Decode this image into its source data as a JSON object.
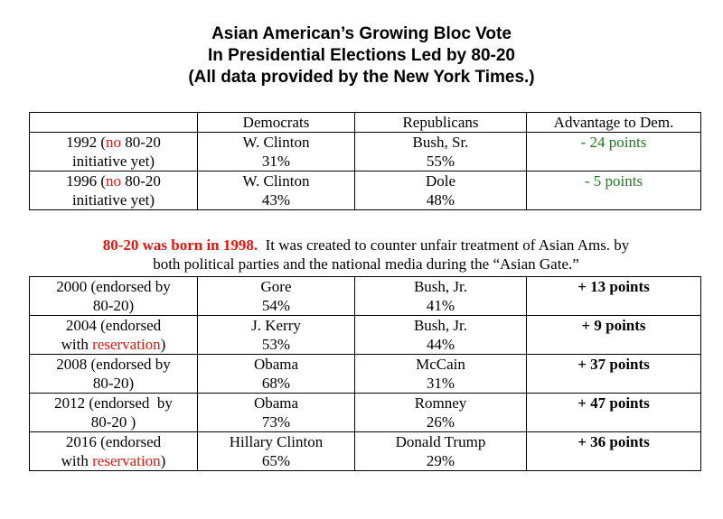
{
  "title": {
    "line1": "Asian American’s Growing Bloc Vote",
    "line2": "In Presidential Elections Led by 80-20",
    "line3": "(All data provided by the New York Times.)"
  },
  "table1": {
    "headers": [
      "",
      "Democrats",
      "Republicans",
      "Advantage to Dem."
    ],
    "rows": [
      {
        "year_prefix": "1992 (",
        "no": "no",
        "year_suffix": " 80-20",
        "year_line2": "initiative yet)",
        "dem_name": "W. Clinton",
        "dem_pct": "31%",
        "rep_name": "Bush, Sr.",
        "rep_pct": "55%",
        "advantage": "- 24 points"
      },
      {
        "year_prefix": "1996 (",
        "no": "no",
        "year_suffix": " 80-20",
        "year_line2": "initiative yet)",
        "dem_name": "W. Clinton",
        "dem_pct": "43%",
        "rep_name": "Dole",
        "rep_pct": "48%",
        "advantage": "- 5 points"
      }
    ]
  },
  "note": {
    "born": "80-20 was born in 1998.",
    "line1_rest": "  It was created to counter unfair treatment of Asian Ams. by",
    "line2": "both political parties and the national media during the “Asian Gate.”"
  },
  "table2": {
    "rows": [
      {
        "year_line1": "2000 (endorsed by",
        "year_line2_pre": "80-20)",
        "reservation": "",
        "year_line2_post": "",
        "dem_name": "Gore",
        "dem_pct": "54%",
        "rep_name": "Bush, Jr.",
        "rep_pct": "41%",
        "advantage": "+ 13 points"
      },
      {
        "year_line1": "2004 (endorsed",
        "year_line2_pre": "with ",
        "reservation": "reservation",
        "year_line2_post": ")",
        "dem_name": "J. Kerry",
        "dem_pct": "53%",
        "rep_name": "Bush, Jr.",
        "rep_pct": "44%",
        "advantage": "+ 9 points"
      },
      {
        "year_line1": "2008 (endorsed by",
        "year_line2_pre": "80-20)",
        "reservation": "",
        "year_line2_post": "",
        "dem_name": "Obama",
        "dem_pct": "68%",
        "rep_name": "McCain",
        "rep_pct": "31%",
        "advantage": "+ 37 points"
      },
      {
        "year_line1": "2012 (endorsed  by",
        "year_line2_pre": "80-20 )",
        "reservation": "",
        "year_line2_post": "",
        "dem_name": "Obama",
        "dem_pct": "73%",
        "rep_name": "Romney",
        "rep_pct": "26%",
        "advantage": "+ 47 points"
      },
      {
        "year_line1": "2016 (endorsed",
        "year_line2_pre": "with ",
        "reservation": "reservation",
        "year_line2_post": ")",
        "dem_name": "Hillary Clinton",
        "dem_pct": "65%",
        "rep_name": "Donald Trump",
        "rep_pct": "29%",
        "advantage": "+ 36 points"
      }
    ]
  },
  "colors": {
    "red": "#e8140c",
    "green": "#1f7a1f"
  }
}
